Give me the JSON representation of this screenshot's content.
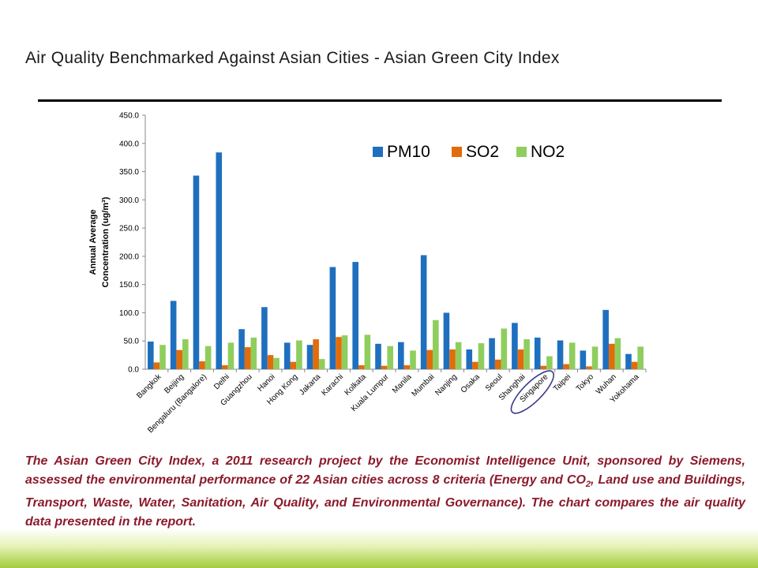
{
  "slide": {
    "title": "Air Quality Benchmarked Against Asian Cities - Asian Green City Index",
    "caption_parts": [
      "The Asian Green City Index, a 2011 research project by the Economist Intelligence Unit, sponsored by Siemens, assessed the environmental performance of 22 Asian cities across 8 criteria (Energy and CO",
      "2",
      ", Land use and Buildings, Transport, Waste, Water, Sanitation, Air Quality, and Environmental Governance). The chart compares the air quality data presented in the report."
    ]
  },
  "colors": {
    "pm10": "#1f6fbf",
    "so2": "#e36c0a",
    "no2": "#8fce5e",
    "highlight": "#3b3b8c",
    "caption": "#8b1a2b"
  },
  "chart_data": {
    "type": "bar",
    "ylabel_lines": [
      "Annual Average",
      "Concentration (ug/m³)"
    ],
    "ylim": [
      0,
      450
    ],
    "ytick_labels": [
      "0.0",
      "50.0",
      "100.0",
      "150.0",
      "200.0",
      "250.0",
      "300.0",
      "350.0",
      "400.0",
      "450.0"
    ],
    "legend_position": "top-right",
    "highlighted_category": "Singapore",
    "categories": [
      "Bangkok",
      "Beijing",
      "Bengaluru (Bangalore)",
      "Delhi",
      "Guangzhou",
      "Hanoi",
      "Hong Kong",
      "Jakarta",
      "Karachi",
      "Kolkata",
      "Kuala Lumpur",
      "Manila",
      "Mumbai",
      "Nanjing",
      "Osaka",
      "Seoul",
      "Shanghai",
      "Singapore",
      "Taipei",
      "Tokyo",
      "Wuhan",
      "Yokohama"
    ],
    "series": [
      {
        "name": "PM10",
        "color_key": "pm10",
        "values": [
          49,
          121,
          343,
          384,
          71,
          110,
          47,
          43,
          181,
          190,
          45,
          48,
          202,
          100,
          35,
          55,
          82,
          56,
          51,
          33,
          105,
          27
        ]
      },
      {
        "name": "SO2",
        "color_key": "so2",
        "values": [
          12,
          34,
          14,
          7,
          39,
          25,
          13,
          53,
          57,
          7,
          6,
          7,
          34,
          35,
          13,
          17,
          35,
          6,
          9,
          5,
          45,
          13
        ]
      },
      {
        "name": "NO2",
        "color_key": "no2",
        "values": [
          43,
          53,
          41,
          47,
          56,
          20,
          51,
          18,
          60,
          61,
          41,
          33,
          87,
          48,
          46,
          72,
          53,
          23,
          47,
          40,
          55,
          40
        ]
      }
    ]
  }
}
